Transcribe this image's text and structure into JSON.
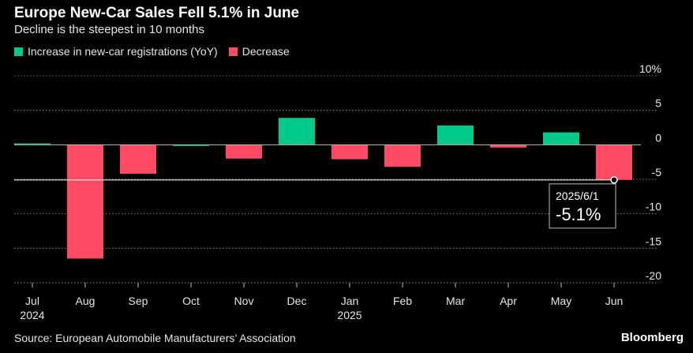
{
  "title": "Europe New-Car Sales Fell 5.1% in June",
  "subtitle": "Decline is the steepest in 10 months",
  "legend": {
    "increase_label": "Increase in new-car registrations (YoY)",
    "decrease_label": "Decrease"
  },
  "source": "Source: European Automobile Manufacturers’ Association",
  "brand": "Bloomberg",
  "colors": {
    "increase": "#00c98a",
    "decrease": "#ff4a63",
    "grid": "#8a8a8a"
  },
  "chart_data": {
    "type": "bar",
    "categories": [
      "Jul",
      "Aug",
      "Sep",
      "Oct",
      "Nov",
      "Dec",
      "Jan",
      "Feb",
      "Mar",
      "Apr",
      "May",
      "Jun"
    ],
    "year_labels": [
      "2024",
      "",
      "",
      "",
      "",
      "",
      "2025",
      "",
      "",
      "",
      "",
      ""
    ],
    "values": [
      0.2,
      -16.5,
      -4.2,
      0.0,
      -2.0,
      3.9,
      -2.1,
      -3.2,
      2.8,
      -0.4,
      1.8,
      -5.1
    ],
    "ylim": [
      -20,
      10
    ],
    "yticks": [
      10,
      5,
      0,
      -5,
      -10,
      -15,
      -20
    ],
    "ytick_labels": [
      "10%",
      "5",
      "0",
      "-5",
      "-10",
      "-15",
      "-20"
    ],
    "annotation": {
      "category": "Jun",
      "date": "2025/6/1",
      "value_label": "-5.1%"
    }
  }
}
